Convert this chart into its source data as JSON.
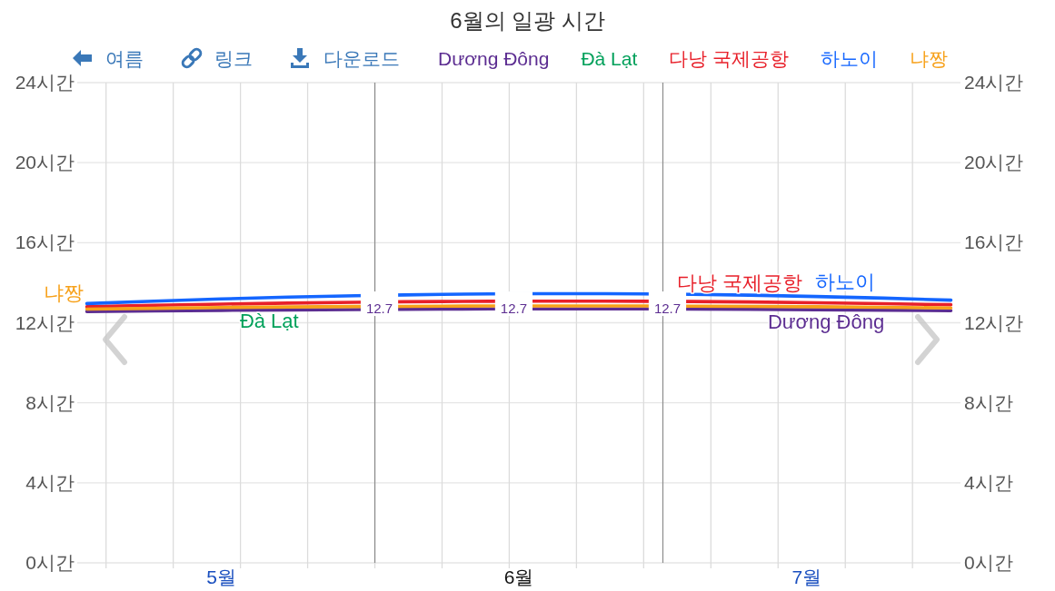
{
  "chart_data": {
    "type": "line",
    "title": "6월의 일광 시간",
    "x": [
      "--05-02",
      "--05-09",
      "--05-16",
      "--05-23",
      "--05-30",
      "--06-04",
      "--06-08",
      "--06-13",
      "--06-18",
      "--06-21",
      "--06-25",
      "--06-29",
      "--07-04",
      "--07-10",
      "--07-17",
      "--07-24",
      "--07-31"
    ],
    "series": [
      {
        "name": "Dương Đông",
        "color": "#5c2d91",
        "values": [
          12.56,
          12.59,
          12.62,
          12.64,
          12.66,
          12.67,
          12.68,
          12.69,
          12.69,
          12.69,
          12.69,
          12.69,
          12.68,
          12.67,
          12.65,
          12.63,
          12.6
        ]
      },
      {
        "name": "Đà Lạt",
        "color": "#00a05a",
        "values": [
          null,
          null,
          null,
          null,
          null,
          null,
          null,
          null,
          null,
          null,
          null,
          null,
          null,
          null,
          null,
          null,
          null
        ]
      },
      {
        "name": "다낭 국제공항",
        "color": "#e8202a",
        "values": [
          12.8,
          12.87,
          12.93,
          12.98,
          13.02,
          13.05,
          13.06,
          13.07,
          13.08,
          13.08,
          13.08,
          13.07,
          13.06,
          13.04,
          13.0,
          12.95,
          12.9
        ]
      },
      {
        "name": "하노이",
        "color": "#1466ff",
        "values": [
          12.96,
          13.08,
          13.19,
          13.28,
          13.35,
          13.39,
          13.42,
          13.44,
          13.45,
          13.45,
          13.45,
          13.44,
          13.42,
          13.38,
          13.31,
          13.23,
          13.13
        ]
      },
      {
        "name": "냐짱",
        "color": "#f7a11a",
        "values": [
          12.68,
          12.72,
          12.76,
          12.79,
          12.81,
          12.82,
          12.83,
          12.84,
          12.84,
          12.84,
          12.84,
          12.84,
          12.83,
          12.82,
          12.8,
          12.77,
          12.74
        ]
      }
    ],
    "xlim": [
      "--05-01",
      "--08-01"
    ],
    "xticks": [
      {
        "value": "--05-04",
        "label": null
      },
      {
        "value": "--05-11",
        "label": null
      },
      {
        "value": "--05-18",
        "label": null
      },
      {
        "value": "--05-25",
        "label": null
      },
      {
        "value": "--06-01",
        "label": null
      },
      {
        "value": "--06-08",
        "label": null
      },
      {
        "value": "--06-15",
        "label": null
      },
      {
        "value": "--06-22",
        "label": null
      },
      {
        "value": "--06-29",
        "label": null
      },
      {
        "value": "--07-06",
        "label": null
      },
      {
        "value": "--07-13",
        "label": null
      },
      {
        "value": "--07-20",
        "label": null
      },
      {
        "value": "--07-27",
        "label": null
      },
      {
        "value": "--05-16",
        "label": "5월"
      },
      {
        "value": "--06-16",
        "label": "6월"
      },
      {
        "value": "--07-16",
        "label": "7월"
      }
    ],
    "ylim": [
      0,
      24
    ],
    "yticks": [
      {
        "value": 0,
        "label": "0시간"
      },
      {
        "value": 4,
        "label": "4시간"
      },
      {
        "value": 8,
        "label": "8시간"
      },
      {
        "value": 12,
        "label": "12시간"
      },
      {
        "value": 16,
        "label": "16시간"
      },
      {
        "value": 20,
        "label": "20시간"
      },
      {
        "value": 24,
        "label": "24시간"
      }
    ],
    "y2lim": [
      0,
      24
    ],
    "y2ticks": [
      {
        "value": 0,
        "label": "0시간"
      },
      {
        "value": 4,
        "label": "4시간"
      },
      {
        "value": 8,
        "label": "8시간"
      },
      {
        "value": 12,
        "label": "12시간"
      },
      {
        "value": 16,
        "label": "16시간"
      },
      {
        "value": 20,
        "label": "20시간"
      },
      {
        "value": 24,
        "label": "24시간"
      }
    ],
    "ref_lines": [
      {
        "axis": "x",
        "value": "--06-01",
        "color": "#8c8c8c"
      },
      {
        "axis": "x",
        "value": "--07-01",
        "color": "#8c8c8c"
      }
    ],
    "annotations": [
      {
        "text": "12.7",
        "x": "--06-01",
        "y": 12.7
      },
      {
        "text": "12.7",
        "x": "--06-15",
        "y": 12.7
      },
      {
        "text": "12.7",
        "x": "--07-01",
        "y": 12.7
      },
      "여름",
      "링크",
      "다운로드"
    ],
    "legend": "top",
    "grid": true
  }
}
